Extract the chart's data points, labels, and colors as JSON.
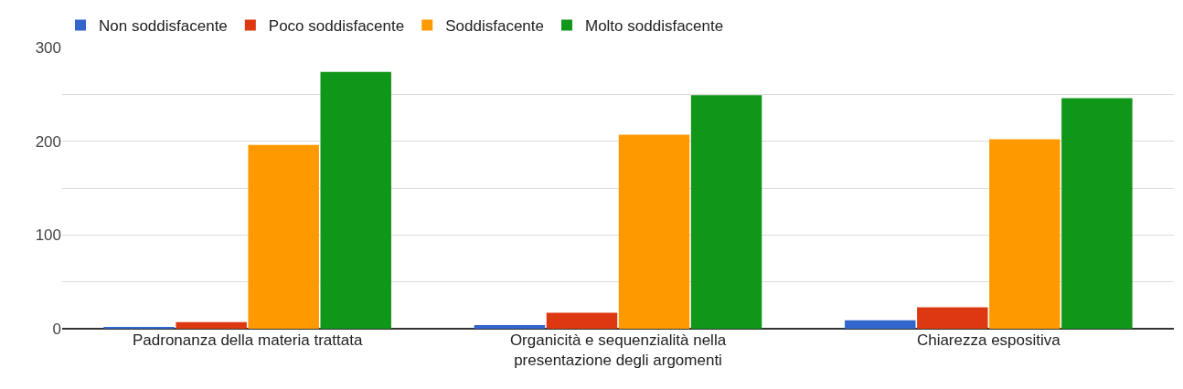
{
  "chart_data": {
    "type": "bar",
    "categories": [
      "Padronanza della materia trattata",
      "Organicità e sequenzialità nella presentazione degli argomenti",
      "Chiarezza espositiva"
    ],
    "series": [
      {
        "name": "Non soddisfacente",
        "color": "#3366cc",
        "values": [
          1,
          4,
          9
        ]
      },
      {
        "name": "Poco soddisfacente",
        "color": "#dc3912",
        "values": [
          7,
          17,
          23
        ]
      },
      {
        "name": "Soddisfacente",
        "color": "#ff9900",
        "values": [
          196,
          207,
          202
        ]
      },
      {
        "name": "Molto soddisfacente",
        "color": "#109618",
        "values": [
          274,
          249,
          246
        ]
      }
    ],
    "ylim": [
      0,
      300
    ],
    "yticks": [
      0,
      {
        "value": 50,
        "label": null
      },
      100,
      {
        "value": 150,
        "label": null
      },
      200,
      {
        "value": 250,
        "label": null
      },
      300
    ],
    "grid": "y",
    "legend": "top left"
  }
}
